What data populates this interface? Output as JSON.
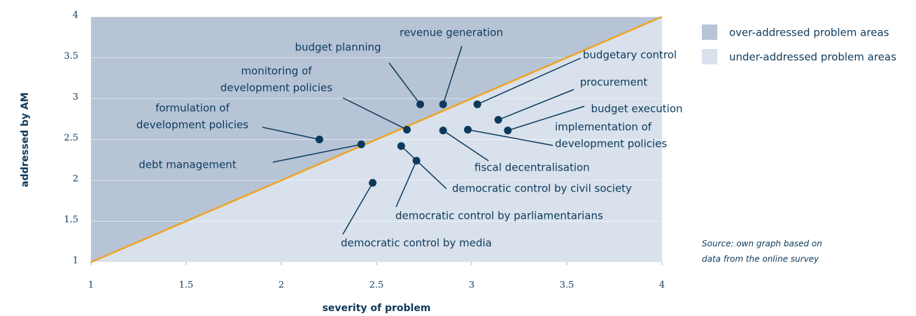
{
  "chart_data": {
    "type": "scatter",
    "x_label": "severity of problem",
    "y_label": "addressed by AM",
    "xlim": [
      1,
      4
    ],
    "ylim": [
      1,
      4
    ],
    "xticks": [
      1,
      1.5,
      2,
      2.5,
      3,
      3.5,
      4
    ],
    "yticks": [
      1,
      1.5,
      2,
      2.5,
      3,
      3.5,
      4
    ],
    "grid": true,
    "color": "#0d3a5c",
    "line_color": "#f0a31e",
    "legend": [
      {
        "name": "over-addressed problem areas",
        "color": "#b6c4d6"
      },
      {
        "name": "under-addressed problem areas",
        "color": "#d8e1ec"
      }
    ],
    "source": [
      "Source: own graph based on",
      "data from the online survey"
    ],
    "points": [
      {
        "label": [
          "budget planning"
        ],
        "x": 2.73,
        "y": 2.93
      },
      {
        "label": [
          "revenue generation"
        ],
        "x": 2.85,
        "y": 2.93
      },
      {
        "label": [
          "budgetary control"
        ],
        "x": 3.03,
        "y": 2.93
      },
      {
        "label": [
          "monitoring of",
          "development policies"
        ],
        "x": 2.66,
        "y": 2.62
      },
      {
        "label": [
          "formulation of",
          "development policies"
        ],
        "x": 2.2,
        "y": 2.5
      },
      {
        "label": [
          "debt management"
        ],
        "x": 2.42,
        "y": 2.44
      },
      {
        "label": [
          "procurement"
        ],
        "x": 3.14,
        "y": 2.74
      },
      {
        "label": [
          "budget execution"
        ],
        "x": 3.19,
        "y": 2.61
      },
      {
        "label": [
          "implementation of",
          "development policies"
        ],
        "x": 2.98,
        "y": 2.62
      },
      {
        "label": [
          "fiscal decentralisation"
        ],
        "x": 2.85,
        "y": 2.61
      },
      {
        "label": [
          "democratic control by civil society"
        ],
        "x": 2.63,
        "y": 2.42
      },
      {
        "label": [
          "democratic control by parliamentarians"
        ],
        "x": 2.71,
        "y": 2.24
      },
      {
        "label": [
          "democratic control by media"
        ],
        "x": 2.48,
        "y": 1.97
      }
    ]
  }
}
